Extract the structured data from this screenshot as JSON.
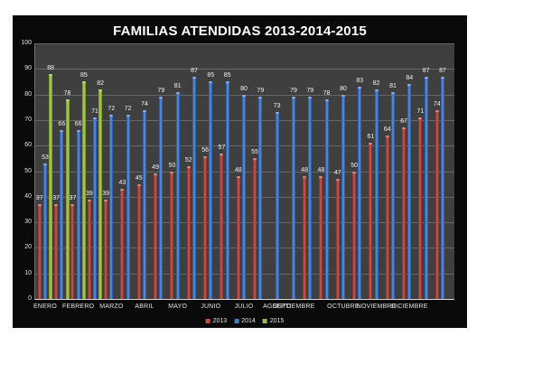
{
  "title": "FAMILIAS ATENDIDAS 2013-2014-2015",
  "colors": {
    "frame_bg": "#0a0a0a",
    "plot_bg": "#3f3f3f",
    "gridline": "#878787",
    "text": "#e0e0e0",
    "series_2013": "#c0504d",
    "series_2014": "#4a7ebb",
    "series_2015": "#9bbb59"
  },
  "legend": [
    {
      "label": "2013",
      "color": "#c0504d"
    },
    {
      "label": "2014",
      "color": "#4a7ebb"
    },
    {
      "label": "2015",
      "color": "#9bbb59"
    }
  ],
  "chart_data": {
    "type": "bar",
    "title": "FAMILIAS ATENDIDAS 2013-2014-2015",
    "ylim": [
      0,
      100
    ],
    "y_ticks": [
      0,
      10,
      20,
      30,
      40,
      50,
      60,
      70,
      80,
      90,
      100
    ],
    "grid": true,
    "legend_position": "bottom",
    "n_groups": 25,
    "series": [
      {
        "name": "2013",
        "values": [
          37,
          37,
          37,
          39,
          39,
          43,
          45,
          49,
          50,
          52,
          56,
          57,
          48,
          55,
          null,
          null,
          48,
          48,
          47,
          50,
          61,
          64,
          67,
          71,
          74
        ]
      },
      {
        "name": "2014",
        "values": [
          53,
          66,
          66,
          71,
          72,
          72,
          74,
          79,
          81,
          87,
          85,
          85,
          80,
          79,
          73,
          79,
          79,
          78,
          80,
          83,
          82,
          81,
          84,
          87,
          87
        ]
      },
      {
        "name": "2015",
        "values": [
          88,
          78,
          85,
          82,
          null,
          null,
          null,
          null,
          null,
          null,
          null,
          null,
          null,
          null,
          null,
          null,
          null,
          null,
          null,
          null,
          null,
          null,
          null,
          null,
          null
        ]
      }
    ],
    "month_labels": [
      {
        "label": "ENERO",
        "group": 0
      },
      {
        "label": "FEBRERO",
        "group": 2
      },
      {
        "label": "MARZO",
        "group": 4
      },
      {
        "label": "ABRIL",
        "group": 6
      },
      {
        "label": "MAYO",
        "group": 8
      },
      {
        "label": "JUNIO",
        "group": 10
      },
      {
        "label": "JULIO",
        "group": 12
      },
      {
        "label": "AGOSTO",
        "group": 14
      },
      {
        "label": "SEPTIEMBRE",
        "group": 15
      },
      {
        "label": "OCTUBRE",
        "group": 18
      },
      {
        "label": "NOVIEMBRE",
        "group": 20
      },
      {
        "label": "DICIEMBRE",
        "group": 22
      }
    ]
  }
}
